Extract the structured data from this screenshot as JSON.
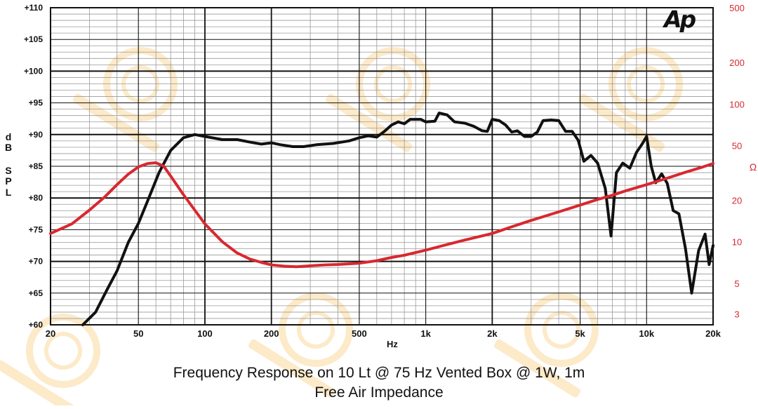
{
  "logo": "Ap",
  "captions": {
    "line1": "Frequency Response on 10 Lt @ 75 Hz Vented Box @ 1W, 1m",
    "line2": "Free Air Impedance"
  },
  "colors": {
    "spl": "#111111",
    "impedance": "#d8282f",
    "watermark": "#fbe3b8"
  },
  "chart_data": {
    "type": "line",
    "xlabel": "Hz",
    "x_scale": "log",
    "xlim": [
      20,
      20000
    ],
    "x_ticks": [
      20,
      50,
      100,
      200,
      500,
      1000,
      2000,
      5000,
      10000,
      20000
    ],
    "x_tick_labels": [
      "20",
      "50",
      "100",
      "200",
      "500",
      "1k",
      "2k",
      "5k",
      "10k",
      "20k"
    ],
    "y_left": {
      "label_letters": [
        "d",
        "B",
        "S",
        "P",
        "L"
      ],
      "lim": [
        60,
        110
      ],
      "ticks": [
        60,
        65,
        70,
        75,
        80,
        85,
        90,
        95,
        100,
        105,
        110
      ],
      "tick_labels": [
        "+60",
        "+65",
        "+70",
        "+75",
        "+80",
        "+85",
        "+90",
        "+95",
        "+100",
        "+105",
        "+110"
      ]
    },
    "y_right": {
      "label": "Ω",
      "scale": "log",
      "lim": [
        2.5,
        500
      ],
      "ticks": [
        3,
        5,
        10,
        20,
        50,
        100,
        200,
        500
      ],
      "tick_labels": [
        "3",
        "5",
        "10",
        "20",
        "50",
        "100",
        "200",
        "500"
      ]
    },
    "grid": true,
    "series": [
      {
        "key": "spl",
        "axis": "left",
        "points": [
          [
            28,
            60
          ],
          [
            32,
            62
          ],
          [
            36,
            65.5
          ],
          [
            40,
            68.5
          ],
          [
            45,
            73
          ],
          [
            50,
            76
          ],
          [
            55,
            79.5
          ],
          [
            62,
            84
          ],
          [
            70,
            87.5
          ],
          [
            80,
            89.5
          ],
          [
            90,
            90
          ],
          [
            100,
            89.7
          ],
          [
            120,
            89.2
          ],
          [
            140,
            89.2
          ],
          [
            160,
            88.8
          ],
          [
            180,
            88.5
          ],
          [
            200,
            88.7
          ],
          [
            220,
            88.4
          ],
          [
            250,
            88.1
          ],
          [
            280,
            88.1
          ],
          [
            320,
            88.4
          ],
          [
            380,
            88.6
          ],
          [
            450,
            89
          ],
          [
            500,
            89.5
          ],
          [
            550,
            89.8
          ],
          [
            600,
            89.6
          ],
          [
            650,
            90.5
          ],
          [
            700,
            91.5
          ],
          [
            750,
            92
          ],
          [
            800,
            91.7
          ],
          [
            850,
            92.4
          ],
          [
            950,
            92.4
          ],
          [
            1000,
            92
          ],
          [
            1100,
            92.1
          ],
          [
            1150,
            93.4
          ],
          [
            1250,
            93.1
          ],
          [
            1350,
            92
          ],
          [
            1500,
            91.8
          ],
          [
            1650,
            91.3
          ],
          [
            1800,
            90.6
          ],
          [
            1900,
            90.5
          ],
          [
            2000,
            92.4
          ],
          [
            2150,
            92.2
          ],
          [
            2300,
            91.5
          ],
          [
            2450,
            90.4
          ],
          [
            2600,
            90.6
          ],
          [
            2800,
            89.7
          ],
          [
            3000,
            89.7
          ],
          [
            3200,
            90.4
          ],
          [
            3400,
            92.2
          ],
          [
            3700,
            92.3
          ],
          [
            4000,
            92.2
          ],
          [
            4300,
            90.5
          ],
          [
            4600,
            90.5
          ],
          [
            4900,
            89.1
          ],
          [
            5200,
            85.8
          ],
          [
            5600,
            86.7
          ],
          [
            6000,
            85.5
          ],
          [
            6500,
            81.5
          ],
          [
            6900,
            74
          ],
          [
            7300,
            84
          ],
          [
            7800,
            85.5
          ],
          [
            8400,
            84.7
          ],
          [
            9000,
            87.2
          ],
          [
            9500,
            88.4
          ],
          [
            10000,
            89.7
          ],
          [
            10500,
            85
          ],
          [
            11000,
            82.4
          ],
          [
            11700,
            83.8
          ],
          [
            12400,
            82.3
          ],
          [
            13200,
            78
          ],
          [
            14000,
            77.5
          ],
          [
            15000,
            72
          ],
          [
            16000,
            65
          ],
          [
            17200,
            71.7
          ],
          [
            18400,
            74.3
          ],
          [
            19200,
            69.5
          ],
          [
            20000,
            72.5
          ]
        ]
      },
      {
        "key": "impedance",
        "axis": "right",
        "points": [
          [
            20,
            11.5
          ],
          [
            25,
            13.5
          ],
          [
            30,
            17
          ],
          [
            35,
            21
          ],
          [
            40,
            26
          ],
          [
            45,
            31
          ],
          [
            50,
            35
          ],
          [
            55,
            37
          ],
          [
            60,
            37.5
          ],
          [
            65,
            35.5
          ],
          [
            70,
            30
          ],
          [
            80,
            22
          ],
          [
            90,
            17
          ],
          [
            100,
            13.5
          ],
          [
            120,
            10
          ],
          [
            140,
            8.3
          ],
          [
            160,
            7.5
          ],
          [
            180,
            7.1
          ],
          [
            200,
            6.8
          ],
          [
            230,
            6.65
          ],
          [
            260,
            6.6
          ],
          [
            300,
            6.7
          ],
          [
            350,
            6.8
          ],
          [
            400,
            6.85
          ],
          [
            500,
            7
          ],
          [
            600,
            7.3
          ],
          [
            700,
            7.7
          ],
          [
            800,
            8
          ],
          [
            1000,
            8.7
          ],
          [
            1200,
            9.4
          ],
          [
            1500,
            10.3
          ],
          [
            2000,
            11.5
          ],
          [
            2500,
            13
          ],
          [
            3000,
            14.3
          ],
          [
            4000,
            16.5
          ],
          [
            5000,
            18.5
          ],
          [
            6000,
            20.3
          ],
          [
            7000,
            21.8
          ],
          [
            8000,
            23.4
          ],
          [
            10000,
            26
          ],
          [
            12000,
            28.5
          ],
          [
            15000,
            32
          ],
          [
            18000,
            35
          ],
          [
            20000,
            37
          ]
        ]
      }
    ]
  }
}
